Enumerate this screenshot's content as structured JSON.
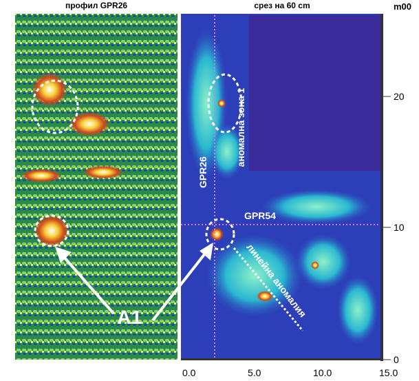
{
  "left_panel": {
    "title": "профил GPR26"
  },
  "right_panel": {
    "title": "срез на 60 cm",
    "unit": "m00",
    "y_ticks": [
      "20",
      "10",
      "0"
    ],
    "x_ticks": [
      "0.0",
      "5.0",
      "10.0",
      "15.0"
    ]
  },
  "annotations": {
    "zone": "аномална зона 1",
    "gpr26": "GPR26",
    "gpr54": "GPR54",
    "linear": "линейна аномалия",
    "a1": "A1"
  }
}
